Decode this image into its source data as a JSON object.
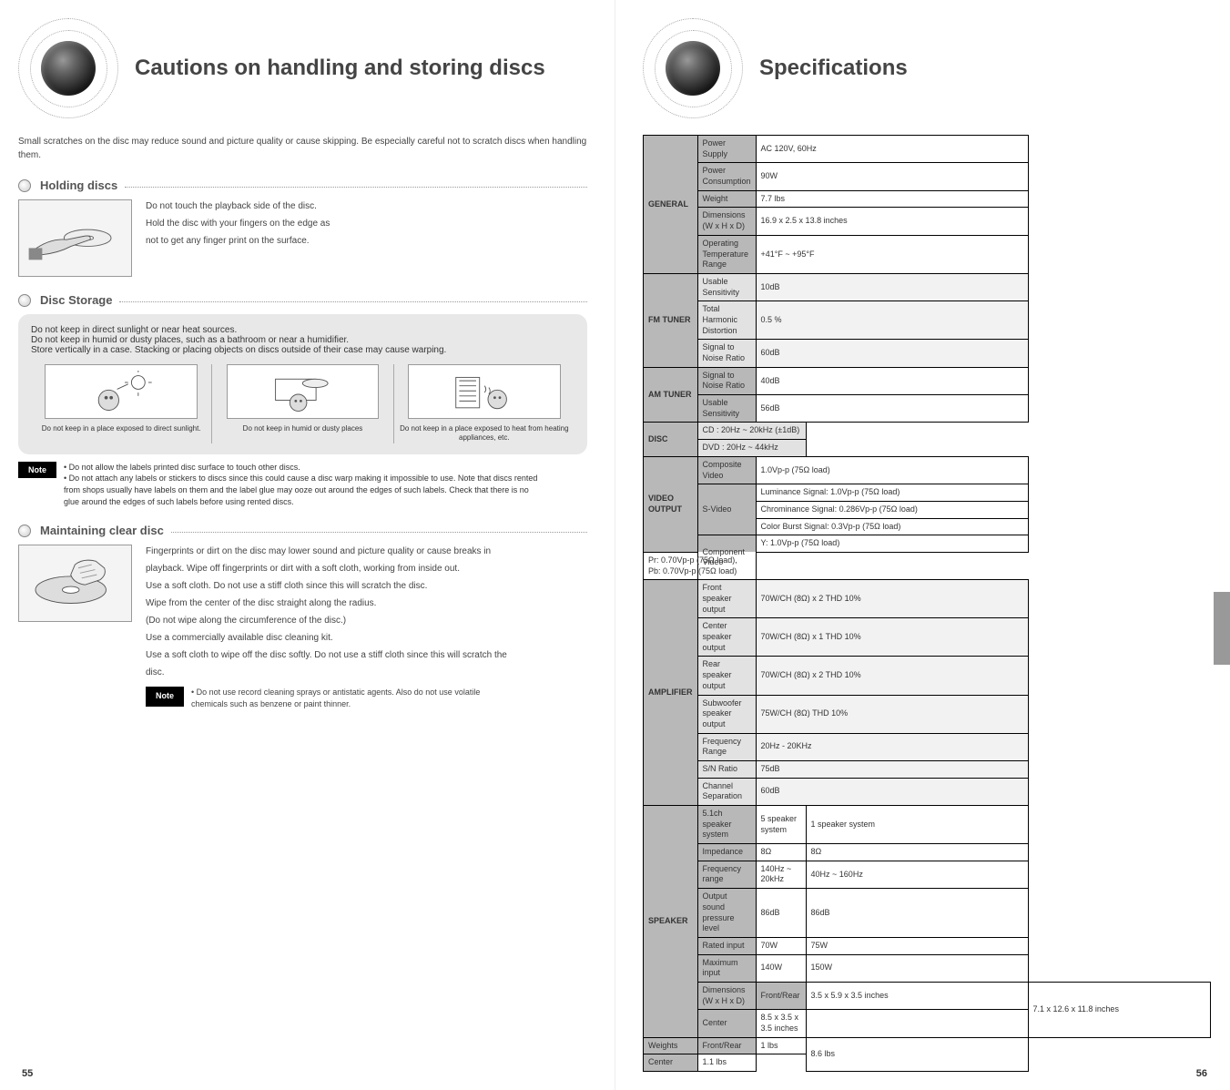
{
  "left": {
    "title": "Cautions on handling and storing discs",
    "intro": "Small scratches on the disc may reduce sound and picture quality or cause skipping. Be especially careful not to scratch discs when handling them.",
    "holding": {
      "heading": "Holding discs",
      "lines": [
        "Do not touch the playback side of the disc.",
        "Hold the disc with your fingers on the edge as",
        "not to get any finger print on the surface."
      ]
    },
    "storage": {
      "heading": "Disc Storage",
      "intro_lines": [
        "Do not keep in direct sunlight or near heat sources.",
        "Do not keep in humid or dusty places, such as a bathroom or near a humidifier.",
        "Store vertically in a case. Stacking or placing objects on discs outside of their case may cause warping."
      ],
      "cells": [
        "Do not keep in a place exposed to direct sunlight.",
        "Do not keep in humid or dusty places",
        "Do not keep in a place exposed to heat from heating appliances, etc."
      ]
    },
    "note_label": "Note",
    "storage_notes_lines": [
      "• Do not allow the labels printed disc surface to touch other discs.",
      "• Do not attach any labels or stickers to discs since this could cause a disc warp making it impossible to use. Note that discs rented",
      "  from shops usually have labels on them and the label glue may ooze out around the edges of such labels. Check that there is no",
      "  glue around the edges of such labels before using rented discs."
    ],
    "clean": {
      "heading": "Maintaining clear disc",
      "lines": [
        "Fingerprints or dirt on the disc may lower sound and picture quality or cause breaks in",
        "playback. Wipe off fingerprints or dirt with a soft cloth, working from inside out.",
        "Use a soft cloth. Do not use a stiff cloth since this will scratch the disc.",
        "Wipe from the center of the disc straight along the radius.",
        "(Do not wipe along the circumference of the disc.)",
        "Use a commercially available disc cleaning kit.",
        "Use a soft cloth to wipe off the disc softly. Do not use a stiff cloth since this will scratch the",
        "disc."
      ],
      "note_label": "Note",
      "note_lines": [
        "• Do not use record cleaning sprays or antistatic agents. Also do not use volatile",
        "  chemicals such as benzene or paint thinner."
      ]
    },
    "page_number": "55"
  },
  "right": {
    "title": "Specifications",
    "page_number": "56",
    "rows": [
      {
        "cat": "GENERAL",
        "rowspan": 5,
        "label": "Power Supply",
        "label_cls": "lbl-dark",
        "val": "AC 120V, 60Hz",
        "val_cls": "val"
      },
      {
        "label": "Power Consumption",
        "label_cls": "lbl-dark",
        "val": "90W",
        "val_cls": "val"
      },
      {
        "label": "Weight",
        "label_cls": "lbl-dark",
        "val": "7.7 lbs",
        "val_cls": "val"
      },
      {
        "label": "Dimensions (W x H x D)",
        "label_cls": "lbl-dark",
        "val": "16.9 x 2.5 x 13.8 inches",
        "val_cls": "val"
      },
      {
        "label": "Operating Temperature Range",
        "label_cls": "lbl-dark",
        "val": "+41°F ~ +95°F",
        "val_cls": "val"
      },
      {
        "cat": "FM TUNER",
        "rowspan": 3,
        "label": "Usable Sensitivity",
        "label_cls": "lbl-light",
        "val": "10dB",
        "val_cls": "val-lt"
      },
      {
        "label": "Total Harmonic Distortion",
        "label_cls": "lbl-light",
        "val": "0.5 %",
        "val_cls": "val-lt"
      },
      {
        "label": "Signal to Noise Ratio",
        "label_cls": "lbl-light",
        "val": "60dB",
        "val_cls": "val-lt"
      },
      {
        "cat": "AM TUNER",
        "rowspan": 2,
        "label": "Signal to Noise Ratio",
        "label_cls": "lbl-dark",
        "val": "40dB",
        "val_cls": "val"
      },
      {
        "label": "Usable Sensitivity",
        "label_cls": "lbl-dark",
        "val": "56dB",
        "val_cls": "val"
      },
      {
        "cat": "DISC",
        "rowspan": 2,
        "label": "CD : 20Hz ~ 20kHz (±1dB)",
        "label_cls": "lbl-light",
        "val": "",
        "val_cls": "val-lt",
        "merge": true
      },
      {
        "label": "DVD : 20Hz ~ 44kHz",
        "label_cls": "lbl-light",
        "val": "",
        "val_cls": "val-lt",
        "merge": true
      },
      {
        "cat": "VIDEO OUTPUT",
        "rowspan": 5,
        "label": "Composite Video",
        "label_cls": "lbl-dark",
        "val": "1.0Vp-p (75Ω load)",
        "val_cls": "val"
      },
      {
        "label": "S-Video",
        "label_cls": "lbl-dark",
        "val": "Luminance Signal: 1.0Vp-p (75Ω load)",
        "val_cls": "val",
        "rowspan2": 3
      },
      {
        "label": "",
        "label_cls": "lbl-dark",
        "val": "Chrominance Signal: 0.286Vp-p (75Ω load)",
        "val_cls": "val",
        "noleft": true
      },
      {
        "label": "",
        "label_cls": "lbl-dark",
        "val": "Color Burst Signal: 0.3Vp-p (75Ω load)",
        "val_cls": "val",
        "noleft": true
      },
      {
        "label": "Component Video",
        "label_cls": "lbl-dark",
        "val": "Y: 1.0Vp-p (75Ω load)",
        "val_cls": "val",
        "rowspan2": 2
      },
      {
        "label": "",
        "label_cls": "lbl-dark",
        "val": "Pr: 0.70Vp-p (75Ω load), Pb: 0.70Vp-p (75Ω load)",
        "val_cls": "val",
        "noleft": true
      },
      {
        "cat": "AMPLIFIER",
        "rowspan": 7,
        "label": "Front speaker output",
        "label_cls": "lbl-light",
        "val": "70W/CH (8Ω) x 2 THD 10%",
        "val_cls": "val-lt"
      },
      {
        "label": "Center speaker output",
        "label_cls": "lbl-light",
        "val": "70W/CH (8Ω) x 1 THD 10%",
        "val_cls": "val-lt"
      },
      {
        "label": "Rear speaker output",
        "label_cls": "lbl-light",
        "val": "70W/CH (8Ω) x 2 THD 10%",
        "val_cls": "val-lt"
      },
      {
        "label": "Subwoofer speaker output",
        "label_cls": "lbl-light",
        "val": "75W/CH (8Ω) THD 10%",
        "val_cls": "val-lt"
      },
      {
        "label": "Frequency Range",
        "label_cls": "lbl-light",
        "val": "20Hz - 20KHz",
        "val_cls": "val-lt"
      },
      {
        "label": "S/N Ratio",
        "label_cls": "lbl-light",
        "val": "75dB",
        "val_cls": "val-lt"
      },
      {
        "label": "Channel Separation",
        "label_cls": "lbl-light",
        "val": "60dB",
        "val_cls": "val-lt"
      },
      {
        "cat": "SPEAKER",
        "rowspan": 8,
        "label": "5.1ch speaker system",
        "label_cls": "lbl-dark",
        "val": "5 speaker system",
        "val_cls": "val",
        "extra": "1 speaker system",
        "val2_cls": "val"
      },
      {
        "label": "Impedance",
        "label_cls": "lbl-dark",
        "val": "8Ω",
        "val_cls": "val",
        "extra": "8Ω"
      },
      {
        "label": "Frequency range",
        "label_cls": "lbl-dark",
        "val": "140Hz ~ 20kHz",
        "val_cls": "val",
        "extra": "40Hz ~ 160Hz"
      },
      {
        "label": "Output sound pressure level",
        "label_cls": "lbl-dark",
        "val": "86dB",
        "val_cls": "val",
        "extra": "86dB"
      },
      {
        "label": "Rated input",
        "label_cls": "lbl-dark",
        "val": "70W",
        "val_cls": "val",
        "extra": "75W"
      },
      {
        "label": "Maximum input",
        "label_cls": "lbl-dark",
        "val": "140W",
        "val_cls": "val",
        "extra": "150W"
      },
      {
        "label": "Dimensions (W x H x D)",
        "label_cls": "lbl-dark",
        "split": true,
        "sub1": "Front/Rear",
        "sub1v": "3.5 x 5.9 x 3.5 inches",
        "extra": "7.1 x 12.6 x 11.8 inches",
        "extraspan": 2
      },
      {
        "label": "",
        "label_cls": "lbl-dark",
        "split": true,
        "sub1": "Center",
        "sub1v": "8.5 x 3.5 x 3.5 inches",
        "noleft": true
      },
      {
        "label": "Weights",
        "label_cls": "lbl-dark",
        "split": true,
        "sub1": "Front/Rear",
        "sub1v": "1 lbs",
        "extra": "8.6 lbs",
        "extraspan": 2
      },
      {
        "label": "",
        "label_cls": "lbl-dark",
        "split": true,
        "sub1": "Center",
        "sub1v": "1.1 lbs",
        "noleft": true
      }
    ]
  }
}
